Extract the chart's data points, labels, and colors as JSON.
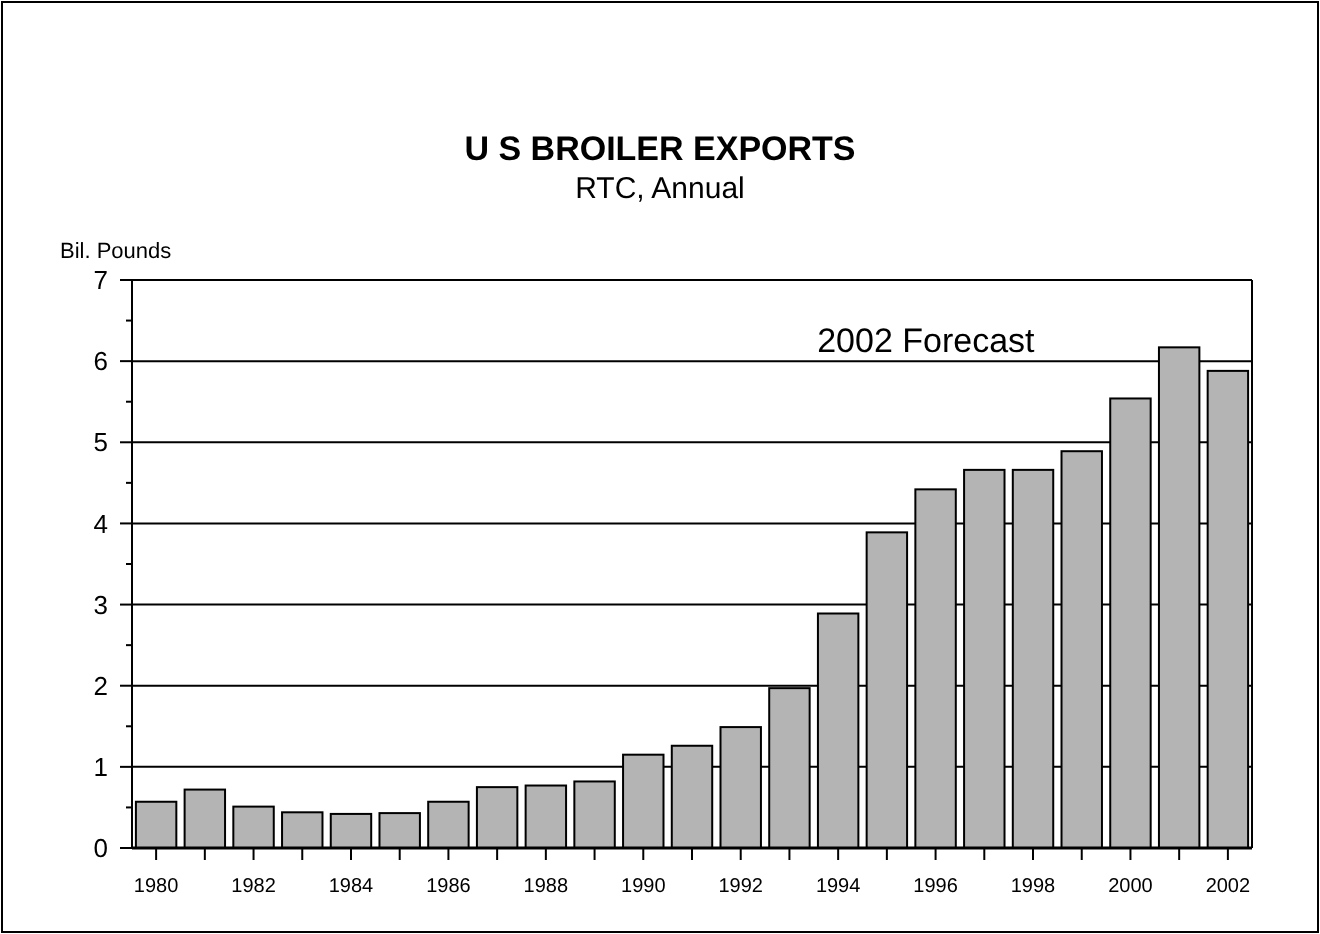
{
  "chart_data": {
    "type": "bar",
    "title": "U S  BROILER  EXPORTS",
    "subtitle": "RTC, Annual",
    "ylabel": "Bil. Pounds",
    "categories": [
      "1980",
      null,
      "1982",
      null,
      "1984",
      null,
      "1986",
      null,
      "1988",
      null,
      "1990",
      null,
      "1992",
      null,
      "1994",
      null,
      "1996",
      null,
      "1998",
      null,
      "2000",
      null,
      "2002"
    ],
    "values": [
      0.57,
      0.72,
      0.51,
      0.44,
      0.42,
      0.43,
      0.57,
      0.75,
      0.77,
      0.82,
      1.15,
      1.26,
      1.49,
      1.97,
      2.89,
      3.89,
      4.42,
      4.66,
      4.66,
      4.89,
      5.54,
      6.17,
      5.88
    ],
    "color": "#b4b4b4",
    "ylim": [
      0,
      7
    ],
    "yticks": [
      0,
      {
        "value": 0.5,
        "label": null
      },
      1,
      {
        "value": 1.5,
        "label": null
      },
      2,
      {
        "value": 2.5,
        "label": null
      },
      3,
      {
        "value": 3.5,
        "label": null
      },
      4,
      {
        "value": 4.5,
        "label": null
      },
      5,
      {
        "value": 5.5,
        "label": null
      },
      6,
      {
        "value": 6.5,
        "label": null
      },
      7
    ],
    "grid": "y",
    "annotations": [
      "2002 Forecast"
    ]
  }
}
